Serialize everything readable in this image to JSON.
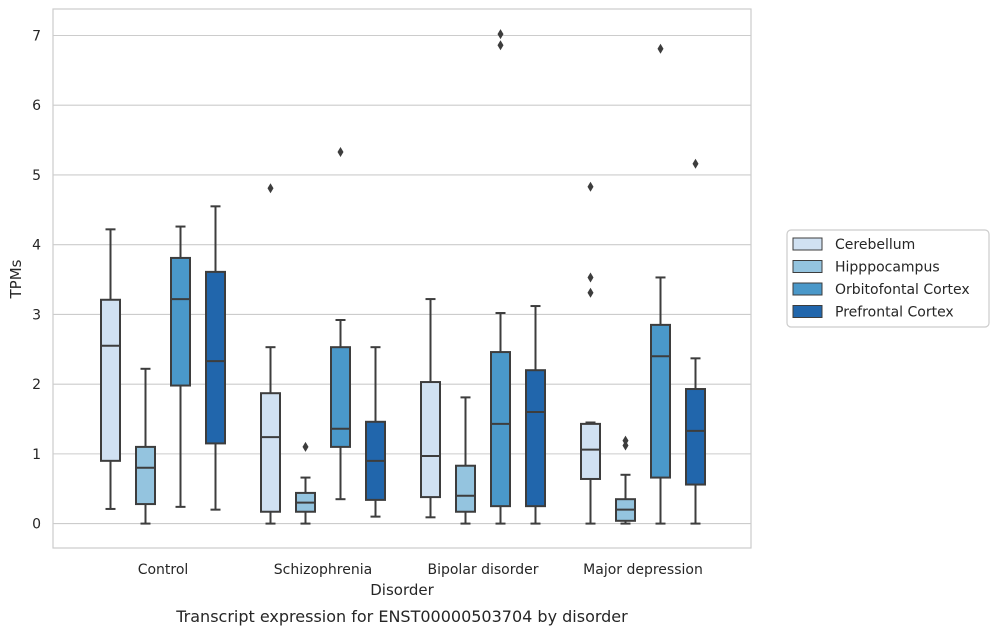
{
  "chart_data": {
    "type": "box",
    "title": "",
    "caption": "Transcript expression for ENST00000503704 by disorder",
    "xlabel": "Disorder",
    "ylabel": "TPMs",
    "ylim": [
      -0.35,
      7.38
    ],
    "yticks": [
      0,
      1,
      2,
      3,
      4,
      5,
      6,
      7
    ],
    "grid": true,
    "legend_position": "right",
    "categories": [
      "Control",
      "Schizophrenia",
      "Bipolar disorder",
      "Major depression"
    ],
    "series": [
      {
        "name": "Cerebellum",
        "color": "#d0e1f2",
        "boxes": [
          {
            "whislo": 0.21,
            "q1": 0.9,
            "med": 2.55,
            "q3": 3.21,
            "whishi": 4.22,
            "fliers": []
          },
          {
            "whislo": 0.0,
            "q1": 0.17,
            "med": 1.24,
            "q3": 1.87,
            "whishi": 2.53,
            "fliers": [
              4.81
            ]
          },
          {
            "whislo": 0.09,
            "q1": 0.38,
            "med": 0.97,
            "q3": 2.03,
            "whishi": 3.22,
            "fliers": []
          },
          {
            "whislo": 0.0,
            "q1": 0.64,
            "med": 1.06,
            "q3": 1.43,
            "whishi": 1.45,
            "fliers": [
              3.31,
              3.53,
              4.83
            ]
          }
        ]
      },
      {
        "name": "Hipppocampus",
        "color": "#94c4df",
        "boxes": [
          {
            "whislo": 0.0,
            "q1": 0.28,
            "med": 0.8,
            "q3": 1.1,
            "whishi": 2.22,
            "fliers": []
          },
          {
            "whislo": 0.0,
            "q1": 0.17,
            "med": 0.3,
            "q3": 0.44,
            "whishi": 0.66,
            "fliers": [
              1.1
            ]
          },
          {
            "whislo": 0.0,
            "q1": 0.17,
            "med": 0.4,
            "q3": 0.83,
            "whishi": 1.81,
            "fliers": []
          },
          {
            "whislo": 0.0,
            "q1": 0.04,
            "med": 0.2,
            "q3": 0.35,
            "whishi": 0.7,
            "fliers": [
              1.12,
              1.19
            ]
          }
        ]
      },
      {
        "name": "Orbitofontal Cortex",
        "color": "#4a98c9",
        "boxes": [
          {
            "whislo": 0.24,
            "q1": 1.98,
            "med": 3.22,
            "q3": 3.81,
            "whishi": 4.26,
            "fliers": []
          },
          {
            "whislo": 0.35,
            "q1": 1.1,
            "med": 1.36,
            "q3": 2.53,
            "whishi": 2.92,
            "fliers": [
              5.33
            ]
          },
          {
            "whislo": 0.0,
            "q1": 0.25,
            "med": 1.43,
            "q3": 2.46,
            "whishi": 3.02,
            "fliers": [
              6.86,
              7.02
            ]
          },
          {
            "whislo": 0.0,
            "q1": 0.66,
            "med": 2.4,
            "q3": 2.85,
            "whishi": 3.53,
            "fliers": [
              6.81
            ]
          }
        ]
      },
      {
        "name": "Prefrontal Cortex",
        "color": "#2166ac",
        "boxes": [
          {
            "whislo": 0.2,
            "q1": 1.15,
            "med": 2.33,
            "q3": 3.61,
            "whishi": 4.55,
            "fliers": []
          },
          {
            "whislo": 0.1,
            "q1": 0.34,
            "med": 0.9,
            "q3": 1.46,
            "whishi": 2.53,
            "fliers": []
          },
          {
            "whislo": 0.0,
            "q1": 0.25,
            "med": 1.6,
            "q3": 2.2,
            "whishi": 3.12,
            "fliers": []
          },
          {
            "whislo": 0.0,
            "q1": 0.56,
            "med": 1.33,
            "q3": 1.93,
            "whishi": 2.37,
            "fliers": [
              5.16
            ]
          }
        ]
      }
    ]
  }
}
